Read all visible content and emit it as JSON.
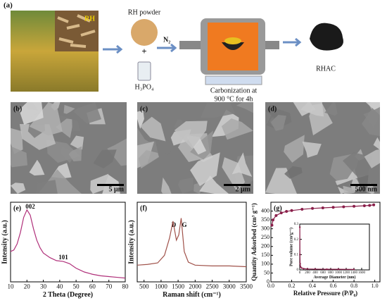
{
  "scheme": {
    "panel": "(a)",
    "photo_label": "RH",
    "powder": "RH powder",
    "plus": "+",
    "acid": "H₃PO₄",
    "gas": "N₂",
    "process": [
      "Carbonization at",
      "900 °C for 4h"
    ],
    "product": "RHAC"
  },
  "sem": [
    {
      "panel": "(b)",
      "scale": "5 μm"
    },
    {
      "panel": "(c)",
      "scale": "2 μm"
    },
    {
      "panel": "(d)",
      "scale": "500 nm"
    }
  ],
  "chart_data": [
    {
      "type": "line",
      "panel": "(e)",
      "xlabel": "2 Theta (Degree)",
      "ylabel": "Intensity (a.u.)",
      "annotations": [
        "002",
        "101"
      ],
      "color": "#b0307a",
      "x": [
        10,
        12,
        14,
        16,
        18,
        20,
        22,
        24,
        26,
        28,
        30,
        34,
        38,
        42,
        46,
        50,
        55,
        60,
        65,
        70,
        75,
        80
      ],
      "values": [
        40,
        42,
        50,
        65,
        85,
        95,
        88,
        70,
        55,
        45,
        38,
        32,
        28,
        27,
        24,
        18,
        13,
        10,
        8,
        7,
        6,
        5
      ],
      "xlim": [
        10,
        80
      ],
      "ylim": [
        0,
        105
      ],
      "xticks": [
        10,
        20,
        30,
        40,
        50,
        60,
        70,
        80
      ]
    },
    {
      "type": "line",
      "panel": "(f)",
      "xlabel": "Raman shift (cm⁻¹)",
      "ylabel": "Intensity (a.u.)",
      "annotations": [
        "D",
        "G"
      ],
      "color": "#a0524a",
      "x": [
        300,
        600,
        900,
        1100,
        1250,
        1350,
        1450,
        1520,
        1590,
        1680,
        1800,
        2000,
        2500,
        3000,
        3500
      ],
      "values": [
        22,
        23,
        25,
        35,
        58,
        80,
        55,
        62,
        84,
        40,
        26,
        22,
        21,
        21,
        20
      ],
      "xlim": [
        300,
        3500
      ],
      "ylim": [
        0,
        105
      ],
      "xticks": [
        500,
        1000,
        1500,
        2000,
        2500,
        3000,
        3500
      ]
    },
    {
      "type": "line",
      "panel": "(g)",
      "xlabel": "Relative Pressure (P/P₀)",
      "ylabel": "Quantity Adsorbed (cm³ g⁻¹)",
      "color": "#8a1f4a",
      "markers": true,
      "x": [
        0.01,
        0.02,
        0.05,
        0.1,
        0.15,
        0.2,
        0.3,
        0.4,
        0.5,
        0.6,
        0.7,
        0.8,
        0.9,
        0.95,
        0.99
      ],
      "values": [
        320,
        350,
        375,
        390,
        398,
        403,
        410,
        415,
        418,
        421,
        424,
        427,
        430,
        432,
        435
      ],
      "xlim": [
        0,
        1.05
      ],
      "ylim": [
        0,
        450
      ],
      "xticks": [
        {
          "value": 0,
          "label": "0.0"
        },
        0.2,
        0.4,
        0.6,
        0.8,
        {
          "value": 1,
          "label": "1.0"
        }
      ],
      "yticks": [
        0,
        50,
        100,
        150,
        200,
        250,
        300,
        350,
        400
      ]
    },
    {
      "type": "line",
      "xlabel": "Average Diameter (nm)",
      "ylabel": "Pore volume (cm³g⁻¹)",
      "color": "#8a1f4a",
      "markers": true,
      "x": [
        2,
        5,
        10,
        20,
        50,
        100,
        200,
        400,
        700,
        1000,
        1400
      ],
      "values": [
        0.28,
        0.1,
        0.04,
        0.02,
        0.012,
        0.008,
        0.006,
        0.005,
        0.004,
        0.004,
        0.003
      ],
      "xlim": [
        0,
        1800
      ],
      "ylim": [
        0,
        0.3
      ],
      "xticks": [
        0,
        200,
        400,
        600,
        800,
        1000,
        1200,
        1400,
        1600
      ],
      "yticks": [
        0,
        0.1,
        0.2,
        0.3
      ]
    }
  ]
}
